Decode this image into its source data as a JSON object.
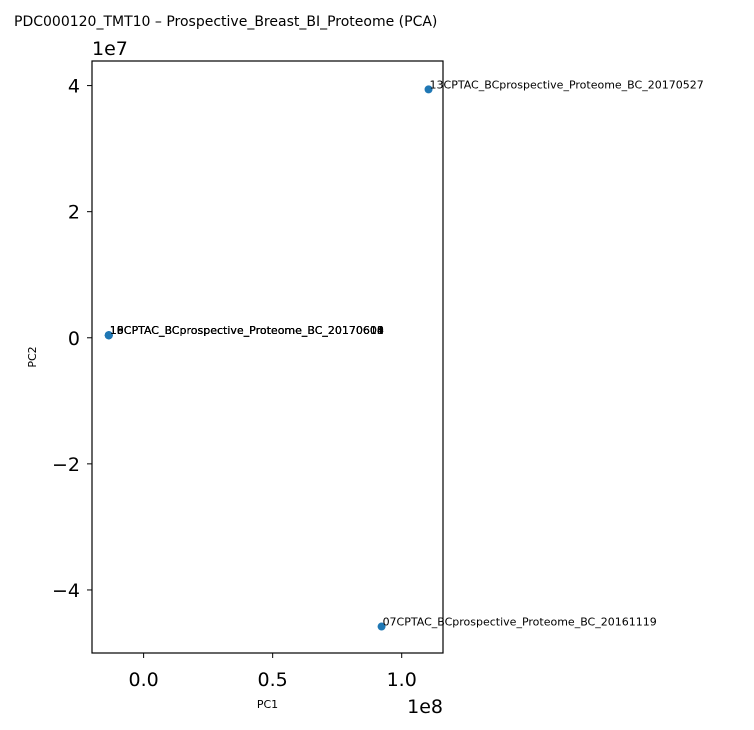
{
  "chart_data": {
    "type": "scatter",
    "title": "PDC000120_TMT10 – Prospective_Breast_BI_Proteome (PCA)",
    "xlabel": "PC1",
    "ylabel": "PC2",
    "xlim": [
      -20000000,
      116000000
    ],
    "ylim": [
      -50000000,
      43900000
    ],
    "x_offset_label": "1e8",
    "y_offset_label": "1e7",
    "x_ticks": [
      0,
      50000000,
      100000000
    ],
    "x_tick_labels": [
      "0.0",
      "0.5",
      "1.0"
    ],
    "y_ticks": [
      -40000000,
      -20000000,
      0,
      20000000,
      40000000
    ],
    "y_tick_labels": [
      "−4",
      "−2",
      "0",
      "2",
      "4"
    ],
    "grid": false,
    "marker_color": "#1f77b4",
    "points": [
      {
        "label": "13CPTAC_BCprospective_Proteome_BC_20170527",
        "x": 110400000,
        "y": 39400000
      },
      {
        "label": "07CPTAC_BCprospective_Proteome_BC_20161119",
        "x": 92200000,
        "y": -45800000
      },
      {
        "label": "18CPTAC_BCprospective_Proteome_BC_20170608",
        "x": -13500000,
        "y": 400000
      },
      {
        "label": "10CPTAC_BCprospective_Proteome_BC_20170601",
        "x": -13500000,
        "y": 400000
      },
      {
        "label": "16CPTAC_BCprospective_Proteome_BC_20170604",
        "x": -13500000,
        "y": 400000
      },
      {
        "label": "19CPTAC_BCprospective_Proteome_BC_20170610",
        "x": -13500000,
        "y": 400000
      },
      {
        "label": "15CPTAC_BCprospective_Proteome_BC_20170603",
        "x": -13500000,
        "y": 400000
      }
    ]
  }
}
